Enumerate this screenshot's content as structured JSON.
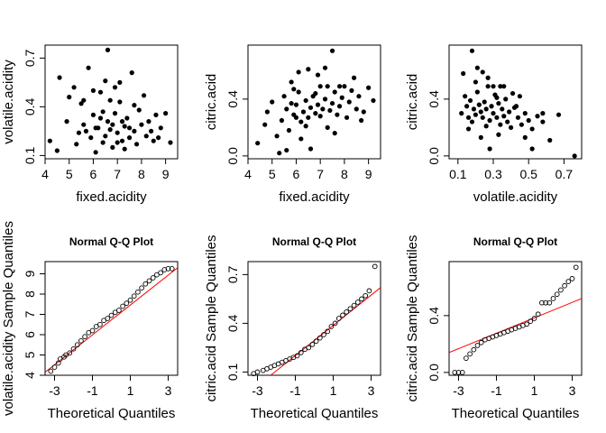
{
  "colors": {
    "points": "#000000",
    "reference_line": "#ff0000",
    "frame": "#000000"
  },
  "chart_data": [
    {
      "type": "scatter",
      "title": "",
      "xlabel": "fixed.acidity",
      "ylabel": "volatile.acidity",
      "xlim": [
        4,
        9.5
      ],
      "ylim": [
        0.08,
        0.78
      ],
      "x_ticks": [
        4,
        5,
        6,
        7,
        8,
        9
      ],
      "x_tick_labels": [
        "4",
        "5",
        "6",
        "7",
        "8",
        "9"
      ],
      "y_ticks": [
        0.1,
        0.4,
        0.7
      ],
      "y_tick_labels": [
        "0.1",
        "0.4",
        "0.7"
      ],
      "marker": "filled",
      "points": [
        [
          4.6,
          0.58
        ],
        [
          4.2,
          0.19
        ],
        [
          4.5,
          0.13
        ],
        [
          4.9,
          0.31
        ],
        [
          5.0,
          0.46
        ],
        [
          5.2,
          0.52
        ],
        [
          5.3,
          0.17
        ],
        [
          5.5,
          0.42
        ],
        [
          5.6,
          0.29
        ],
        [
          5.8,
          0.64
        ],
        [
          5.9,
          0.21
        ],
        [
          6.0,
          0.35
        ],
        [
          6.1,
          0.12
        ],
        [
          6.2,
          0.27
        ],
        [
          6.3,
          0.49
        ],
        [
          6.4,
          0.18
        ],
        [
          6.5,
          0.22
        ],
        [
          6.6,
          0.31
        ],
        [
          6.7,
          0.26
        ],
        [
          6.8,
          0.15
        ],
        [
          6.9,
          0.36
        ],
        [
          7.0,
          0.24
        ],
        [
          7.1,
          0.43
        ],
        [
          7.2,
          0.19
        ],
        [
          7.3,
          0.28
        ],
        [
          7.4,
          0.33
        ],
        [
          7.5,
          0.21
        ],
        [
          7.6,
          0.61
        ],
        [
          7.7,
          0.25
        ],
        [
          7.8,
          0.17
        ],
        [
          7.9,
          0.38
        ],
        [
          8.0,
          0.29
        ],
        [
          8.1,
          0.47
        ],
        [
          8.2,
          0.22
        ],
        [
          8.3,
          0.31
        ],
        [
          8.5,
          0.19
        ],
        [
          8.6,
          0.35
        ],
        [
          8.8,
          0.27
        ],
        [
          9.0,
          0.36
        ],
        [
          9.2,
          0.18
        ],
        [
          6.6,
          0.75
        ],
        [
          5.7,
          0.25
        ],
        [
          6.3,
          0.33
        ],
        [
          6.8,
          0.29
        ],
        [
          7.2,
          0.31
        ],
        [
          6.1,
          0.27
        ],
        [
          7.0,
          0.18
        ],
        [
          6.4,
          0.37
        ],
        [
          7.5,
          0.27
        ],
        [
          6.7,
          0.44
        ],
        [
          5.4,
          0.24
        ],
        [
          8.4,
          0.25
        ],
        [
          7.3,
          0.14
        ],
        [
          6.0,
          0.5
        ],
        [
          6.9,
          0.52
        ],
        [
          7.7,
          0.41
        ],
        [
          8.7,
          0.21
        ],
        [
          6.5,
          0.56
        ],
        [
          7.1,
          0.55
        ],
        [
          5.6,
          0.44
        ]
      ]
    },
    {
      "type": "scatter",
      "title": "",
      "xlabel": "fixed.acidity",
      "ylabel": "citric.acid",
      "xlim": [
        4,
        9.5
      ],
      "ylim": [
        -0.02,
        0.78
      ],
      "x_ticks": [
        4,
        5,
        6,
        7,
        8,
        9
      ],
      "x_tick_labels": [
        "4",
        "5",
        "6",
        "7",
        "8",
        "9"
      ],
      "y_ticks": [
        0.0,
        0.4
      ],
      "y_tick_labels": [
        "0.0",
        "0.4"
      ],
      "marker": "filled",
      "points": [
        [
          4.4,
          0.09
        ],
        [
          4.7,
          0.22
        ],
        [
          4.8,
          0.31
        ],
        [
          5.0,
          0.38
        ],
        [
          5.2,
          0.14
        ],
        [
          5.4,
          0.25
        ],
        [
          5.5,
          0.42
        ],
        [
          5.6,
          0.33
        ],
        [
          5.7,
          0.18
        ],
        [
          5.8,
          0.52
        ],
        [
          5.9,
          0.29
        ],
        [
          6.0,
          0.36
        ],
        [
          6.1,
          0.45
        ],
        [
          6.2,
          0.24
        ],
        [
          6.3,
          0.31
        ],
        [
          6.4,
          0.39
        ],
        [
          6.5,
          0.27
        ],
        [
          6.6,
          0.34
        ],
        [
          6.7,
          0.42
        ],
        [
          6.8,
          0.3
        ],
        [
          6.9,
          0.36
        ],
        [
          7.0,
          0.28
        ],
        [
          7.1,
          0.33
        ],
        [
          7.2,
          0.4
        ],
        [
          7.3,
          0.49
        ],
        [
          7.4,
          0.32
        ],
        [
          7.5,
          0.37
        ],
        [
          7.6,
          0.45
        ],
        [
          7.7,
          0.29
        ],
        [
          7.8,
          0.35
        ],
        [
          7.9,
          0.41
        ],
        [
          8.0,
          0.49
        ],
        [
          8.1,
          0.27
        ],
        [
          8.2,
          0.38
        ],
        [
          8.3,
          0.46
        ],
        [
          8.5,
          0.33
        ],
        [
          8.6,
          0.42
        ],
        [
          8.8,
          0.31
        ],
        [
          9.0,
          0.48
        ],
        [
          9.2,
          0.39
        ],
        [
          7.5,
          0.74
        ],
        [
          6.1,
          0.59
        ],
        [
          6.5,
          0.61
        ],
        [
          5.6,
          0.04
        ],
        [
          5.3,
          0.02
        ],
        [
          6.2,
          0.12
        ],
        [
          6.9,
          0.57
        ],
        [
          7.2,
          0.62
        ],
        [
          5.9,
          0.47
        ],
        [
          8.4,
          0.55
        ],
        [
          6.6,
          0.05
        ],
        [
          7.8,
          0.49
        ],
        [
          7.0,
          0.49
        ],
        [
          7.3,
          0.2
        ],
        [
          6.4,
          0.21
        ],
        [
          8.7,
          0.25
        ],
        [
          5.8,
          0.37
        ],
        [
          6.8,
          0.44
        ],
        [
          7.6,
          0.16
        ],
        [
          6.0,
          0.27
        ]
      ]
    },
    {
      "type": "scatter",
      "title": "",
      "xlabel": "volatile.acidity",
      "ylabel": "citric.acid",
      "xlim": [
        0.05,
        0.8
      ],
      "ylim": [
        -0.02,
        0.78
      ],
      "x_ticks": [
        0.1,
        0.3,
        0.5,
        0.7
      ],
      "x_tick_labels": [
        "0.1",
        "0.3",
        "0.5",
        "0.7"
      ],
      "y_ticks": [
        0.0,
        0.4
      ],
      "y_tick_labels": [
        "0.0",
        "0.4"
      ],
      "marker": "filled",
      "points": [
        [
          0.12,
          0.3
        ],
        [
          0.14,
          0.42
        ],
        [
          0.15,
          0.35
        ],
        [
          0.16,
          0.27
        ],
        [
          0.17,
          0.39
        ],
        [
          0.18,
          0.24
        ],
        [
          0.19,
          0.33
        ],
        [
          0.2,
          0.29
        ],
        [
          0.21,
          0.45
        ],
        [
          0.22,
          0.36
        ],
        [
          0.23,
          0.31
        ],
        [
          0.24,
          0.27
        ],
        [
          0.25,
          0.38
        ],
        [
          0.26,
          0.33
        ],
        [
          0.27,
          0.49
        ],
        [
          0.28,
          0.25
        ],
        [
          0.29,
          0.35
        ],
        [
          0.3,
          0.3
        ],
        [
          0.31,
          0.43
        ],
        [
          0.32,
          0.27
        ],
        [
          0.33,
          0.37
        ],
        [
          0.34,
          0.22
        ],
        [
          0.35,
          0.33
        ],
        [
          0.36,
          0.28
        ],
        [
          0.37,
          0.4
        ],
        [
          0.38,
          0.24
        ],
        [
          0.39,
          0.31
        ],
        [
          0.4,
          0.2
        ],
        [
          0.42,
          0.34
        ],
        [
          0.44,
          0.27
        ],
        [
          0.46,
          0.22
        ],
        [
          0.48,
          0.3
        ],
        [
          0.5,
          0.25
        ],
        [
          0.52,
          0.19
        ],
        [
          0.55,
          0.28
        ],
        [
          0.58,
          0.24
        ],
        [
          0.62,
          0.11
        ],
        [
          0.67,
          0.29
        ],
        [
          0.76,
          0.0
        ],
        [
          0.13,
          0.58
        ],
        [
          0.18,
          0.74
        ],
        [
          0.21,
          0.62
        ],
        [
          0.24,
          0.59
        ],
        [
          0.27,
          0.55
        ],
        [
          0.3,
          0.49
        ],
        [
          0.34,
          0.49
        ],
        [
          0.28,
          0.05
        ],
        [
          0.45,
          0.42
        ],
        [
          0.52,
          0.05
        ],
        [
          0.58,
          0.3
        ],
        [
          0.16,
          0.19
        ],
        [
          0.2,
          0.52
        ],
        [
          0.33,
          0.15
        ],
        [
          0.41,
          0.44
        ],
        [
          0.48,
          0.13
        ],
        [
          0.23,
          0.13
        ],
        [
          0.36,
          0.49
        ],
        [
          0.43,
          0.35
        ],
        [
          0.26,
          0.21
        ],
        [
          0.32,
          0.41
        ]
      ]
    },
    {
      "type": "scatter",
      "subtype": "qq",
      "title": "Normal Q-Q Plot",
      "xlabel": "Theoretical Quantiles",
      "ylabel": "volatile.acidity Sample Quantiles",
      "xlim": [
        -3.5,
        3.5
      ],
      "ylim": [
        4,
        9.6
      ],
      "x_ticks": [
        -3,
        -1,
        1,
        3
      ],
      "x_tick_labels": [
        "-3",
        "-1",
        "1",
        "3"
      ],
      "y_ticks": [
        4,
        5,
        6,
        7,
        8,
        9
      ],
      "y_tick_labels": [
        "4",
        "5",
        "6",
        "7",
        "8",
        "9"
      ],
      "marker": "open",
      "points": [
        [
          -3.2,
          4.2
        ],
        [
          -3.0,
          4.4
        ],
        [
          -2.8,
          4.6
        ],
        [
          -2.7,
          4.8
        ],
        [
          -2.5,
          4.9
        ],
        [
          -2.4,
          5.0
        ],
        [
          -2.2,
          5.1
        ],
        [
          -2.0,
          5.3
        ],
        [
          -1.8,
          5.5
        ],
        [
          -1.6,
          5.7
        ],
        [
          -1.4,
          5.9
        ],
        [
          -1.2,
          6.1
        ],
        [
          -1.0,
          6.2
        ],
        [
          -0.8,
          6.4
        ],
        [
          -0.6,
          6.5
        ],
        [
          -0.4,
          6.7
        ],
        [
          -0.2,
          6.8
        ],
        [
          0.0,
          6.95
        ],
        [
          0.2,
          7.1
        ],
        [
          0.4,
          7.2
        ],
        [
          0.6,
          7.4
        ],
        [
          0.8,
          7.55
        ],
        [
          1.0,
          7.7
        ],
        [
          1.2,
          7.9
        ],
        [
          1.4,
          8.1
        ],
        [
          1.6,
          8.3
        ],
        [
          1.8,
          8.5
        ],
        [
          2.0,
          8.65
        ],
        [
          2.2,
          8.8
        ],
        [
          2.4,
          8.95
        ],
        [
          2.6,
          9.05
        ],
        [
          2.8,
          9.2
        ],
        [
          3.0,
          9.25
        ],
        [
          3.2,
          9.25
        ]
      ],
      "reference_line": [
        [
          -3.5,
          4.15
        ],
        [
          3.5,
          9.3
        ]
      ]
    },
    {
      "type": "scatter",
      "subtype": "qq",
      "title": "Normal Q-Q Plot",
      "xlabel": "Theoretical Quantiles",
      "ylabel": "citric.acid Sample Quantiles",
      "xlim": [
        -3.5,
        3.5
      ],
      "ylim": [
        0.08,
        0.78
      ],
      "x_ticks": [
        -3,
        -1,
        1,
        3
      ],
      "x_tick_labels": [
        "-3",
        "-1",
        "1",
        "3"
      ],
      "y_ticks": [
        0.1,
        0.4,
        0.7
      ],
      "y_tick_labels": [
        "0.1",
        "0.4",
        "0.7"
      ],
      "marker": "open",
      "points": [
        [
          -3.2,
          0.09
        ],
        [
          -3.0,
          0.1
        ],
        [
          -2.7,
          0.11
        ],
        [
          -2.5,
          0.12
        ],
        [
          -2.3,
          0.13
        ],
        [
          -2.1,
          0.14
        ],
        [
          -1.9,
          0.15
        ],
        [
          -1.7,
          0.16
        ],
        [
          -1.5,
          0.17
        ],
        [
          -1.3,
          0.18
        ],
        [
          -1.1,
          0.19
        ],
        [
          -0.9,
          0.2
        ],
        [
          -0.7,
          0.22
        ],
        [
          -0.5,
          0.24
        ],
        [
          -0.3,
          0.25
        ],
        [
          -0.1,
          0.27
        ],
        [
          0.1,
          0.29
        ],
        [
          0.3,
          0.31
        ],
        [
          0.5,
          0.33
        ],
        [
          0.7,
          0.35
        ],
        [
          0.9,
          0.38
        ],
        [
          1.1,
          0.4
        ],
        [
          1.3,
          0.43
        ],
        [
          1.5,
          0.45
        ],
        [
          1.7,
          0.47
        ],
        [
          1.9,
          0.49
        ],
        [
          2.1,
          0.51
        ],
        [
          2.3,
          0.53
        ],
        [
          2.5,
          0.55
        ],
        [
          2.7,
          0.57
        ],
        [
          2.9,
          0.6
        ],
        [
          3.2,
          0.75
        ]
      ],
      "reference_line": [
        [
          -2.3,
          0.08
        ],
        [
          3.5,
          0.62
        ]
      ]
    },
    {
      "type": "scatter",
      "subtype": "qq",
      "title": "Normal Q-Q Plot",
      "xlabel": "Theoretical Quantiles",
      "ylabel": "citric.acid Sample Quantiles",
      "xlim": [
        -3.5,
        3.5
      ],
      "ylim": [
        -0.02,
        0.78
      ],
      "x_ticks": [
        -3,
        -1,
        1,
        3
      ],
      "x_tick_labels": [
        "-3",
        "-1",
        "1",
        "3"
      ],
      "y_ticks": [
        0.0,
        0.4
      ],
      "y_tick_labels": [
        "0.0",
        "0.4"
      ],
      "marker": "open",
      "points": [
        [
          -3.2,
          0.0
        ],
        [
          -3.0,
          0.0
        ],
        [
          -2.8,
          0.0
        ],
        [
          -2.6,
          0.1
        ],
        [
          -2.4,
          0.13
        ],
        [
          -2.2,
          0.16
        ],
        [
          -2.0,
          0.19
        ],
        [
          -1.8,
          0.21
        ],
        [
          -1.6,
          0.23
        ],
        [
          -1.4,
          0.24
        ],
        [
          -1.2,
          0.25
        ],
        [
          -1.0,
          0.26
        ],
        [
          -0.8,
          0.27
        ],
        [
          -0.6,
          0.28
        ],
        [
          -0.4,
          0.29
        ],
        [
          -0.2,
          0.3
        ],
        [
          0.0,
          0.31
        ],
        [
          0.2,
          0.32
        ],
        [
          0.4,
          0.33
        ],
        [
          0.6,
          0.34
        ],
        [
          0.8,
          0.36
        ],
        [
          1.0,
          0.38
        ],
        [
          1.2,
          0.41
        ],
        [
          1.4,
          0.49
        ],
        [
          1.6,
          0.49
        ],
        [
          1.8,
          0.49
        ],
        [
          2.0,
          0.52
        ],
        [
          2.2,
          0.55
        ],
        [
          2.4,
          0.58
        ],
        [
          2.6,
          0.61
        ],
        [
          2.8,
          0.64
        ],
        [
          3.0,
          0.66
        ],
        [
          3.2,
          0.74
        ]
      ],
      "reference_line": [
        [
          -3.5,
          0.14
        ],
        [
          3.5,
          0.52
        ]
      ]
    }
  ]
}
